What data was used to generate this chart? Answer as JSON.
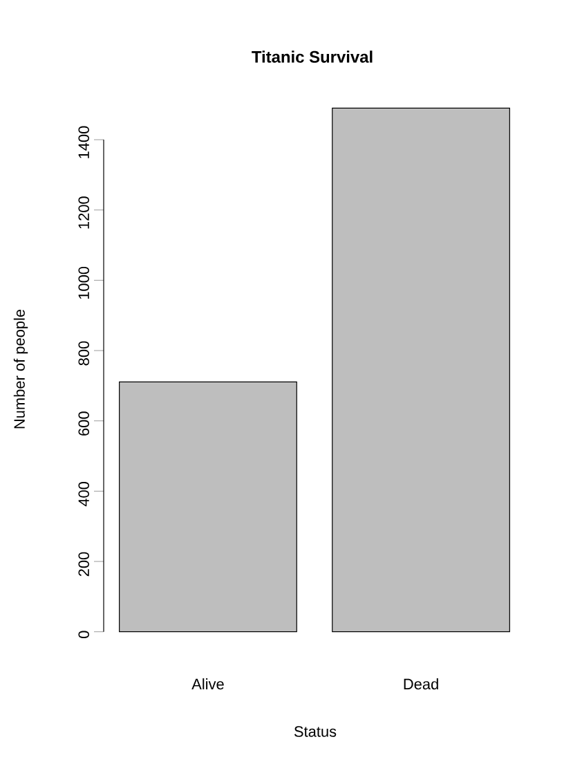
{
  "chart_data": {
    "type": "bar",
    "title": "Titanic Survival",
    "xlabel": "Status",
    "ylabel": "Number of people",
    "categories": [
      "Alive",
      "Dead"
    ],
    "values": [
      711,
      1490
    ],
    "color": "#bebebe",
    "ylim": [
      0,
      1490
    ],
    "yticks": [
      0,
      200,
      400,
      600,
      800,
      1000,
      1200,
      1400
    ]
  }
}
